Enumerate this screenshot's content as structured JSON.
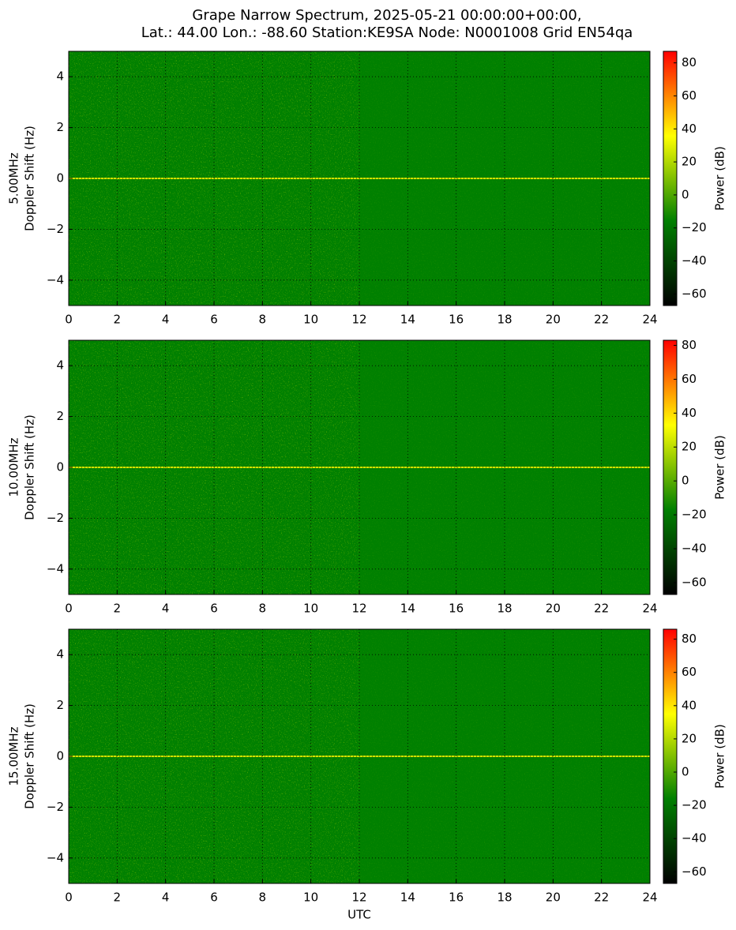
{
  "chart_data": [
    {
      "type": "spectrogram",
      "title": [
        "Grape Narrow Spectrum, 2025-05-21 00:00:00+00:00,",
        "Lat.: 44.00 Lon.: -88.60 Station:KE9SA Node: N0001008 Grid EN54qa"
      ],
      "ylabel": [
        "5.00MHz",
        "Doppler Shift (Hz)"
      ],
      "xlim": [
        0,
        24
      ],
      "xticks": [
        0,
        2,
        4,
        6,
        8,
        10,
        12,
        14,
        16,
        18,
        20,
        22,
        24
      ],
      "ylim": [
        -5,
        5
      ],
      "yticks": [
        {
          "value": -4,
          "label": "−4"
        },
        {
          "value": -2,
          "label": "−2"
        },
        0,
        2,
        4
      ],
      "grid": true,
      "colormap": [
        "#000000",
        "#008000",
        "#ffff00",
        "#ff0000"
      ],
      "colorbar_label": "Power (dB)",
      "clim": [
        -67,
        87
      ],
      "cticks": [
        {
          "value": -60,
          "label": "−60"
        },
        {
          "value": -40,
          "label": "−40"
        },
        {
          "value": -20,
          "label": "−20"
        },
        0,
        20,
        40,
        60,
        80
      ]
    },
    {
      "type": "spectrogram",
      "ylabel": [
        "10.00MHz",
        "Doppler Shift (Hz)"
      ],
      "xlim": [
        0,
        24
      ],
      "xticks": [
        0,
        2,
        4,
        6,
        8,
        10,
        12,
        14,
        16,
        18,
        20,
        22,
        24
      ],
      "ylim": [
        -5,
        5
      ],
      "yticks": [
        {
          "value": -4,
          "label": "−4"
        },
        {
          "value": -2,
          "label": "−2"
        },
        0,
        2,
        4
      ],
      "grid": true,
      "colormap": [
        "#000000",
        "#008000",
        "#ffff00",
        "#ff0000"
      ],
      "colorbar_label": "Power (dB)",
      "clim": [
        -67,
        83
      ],
      "cticks": [
        {
          "value": -60,
          "label": "−60"
        },
        {
          "value": -40,
          "label": "−40"
        },
        {
          "value": -20,
          "label": "−20"
        },
        0,
        20,
        40,
        60,
        80
      ]
    },
    {
      "type": "spectrogram",
      "ylabel": [
        "15.00MHz",
        "Doppler Shift (Hz)"
      ],
      "xlabel": "UTC",
      "xlim": [
        0,
        24
      ],
      "xticks": [
        0,
        2,
        4,
        6,
        8,
        10,
        12,
        14,
        16,
        18,
        20,
        22,
        24
      ],
      "ylim": [
        -5,
        5
      ],
      "yticks": [
        {
          "value": -4,
          "label": "−4"
        },
        {
          "value": -2,
          "label": "−2"
        },
        0,
        2,
        4
      ],
      "grid": true,
      "colormap": [
        "#000000",
        "#008000",
        "#ffff00",
        "#ff0000"
      ],
      "colorbar_label": "Power (dB)",
      "clim": [
        -67,
        86
      ],
      "cticks": [
        {
          "value": -60,
          "label": "−60"
        },
        {
          "value": -40,
          "label": "−40"
        },
        {
          "value": -20,
          "label": "−20"
        },
        0,
        20,
        40,
        60,
        80
      ]
    }
  ]
}
